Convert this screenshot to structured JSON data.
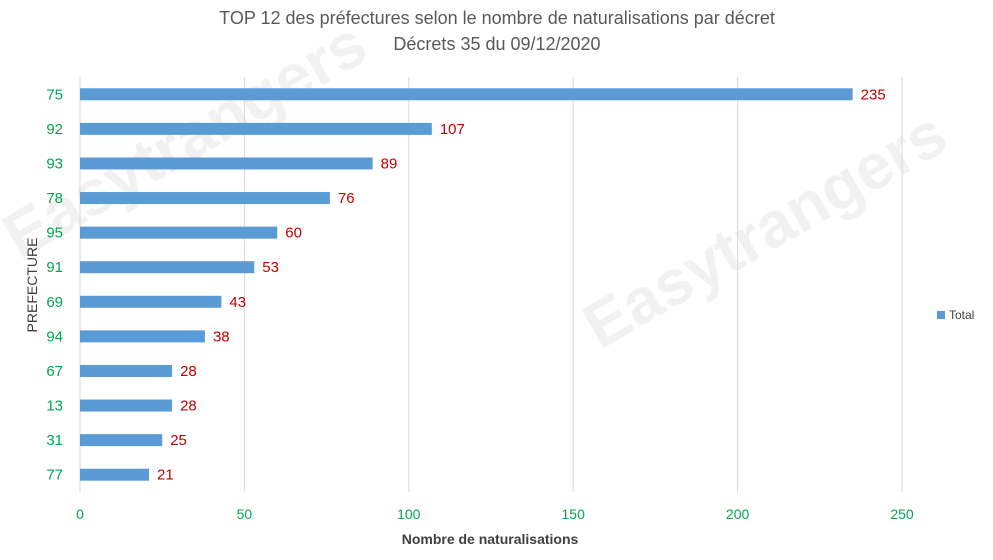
{
  "chart_data": {
    "type": "bar",
    "orientation": "horizontal",
    "title": "TOP 12 des préfectures selon le nombre de naturalisations par décret",
    "subtitle": "Décrets 35 du 09/12/2020",
    "xlabel": "Nombre de naturalisations",
    "ylabel": "PREFECTURE",
    "categories": [
      "75",
      "92",
      "93",
      "78",
      "95",
      "91",
      "69",
      "94",
      "67",
      "13",
      "31",
      "77"
    ],
    "series": [
      {
        "name": "Total",
        "values": [
          235,
          107,
          89,
          76,
          60,
          53,
          43,
          38,
          28,
          28,
          25,
          21
        ]
      }
    ],
    "xlim": [
      0,
      250
    ],
    "xticks": [
      0,
      50,
      100,
      150,
      200,
      250
    ],
    "grid": true,
    "legend_position": "right",
    "watermark": "Easytrangers",
    "colors": {
      "bar": "#5b9bd5",
      "data_label": "#c00000",
      "tick_label": "#00a651",
      "grid": "#d9d9d9"
    }
  }
}
